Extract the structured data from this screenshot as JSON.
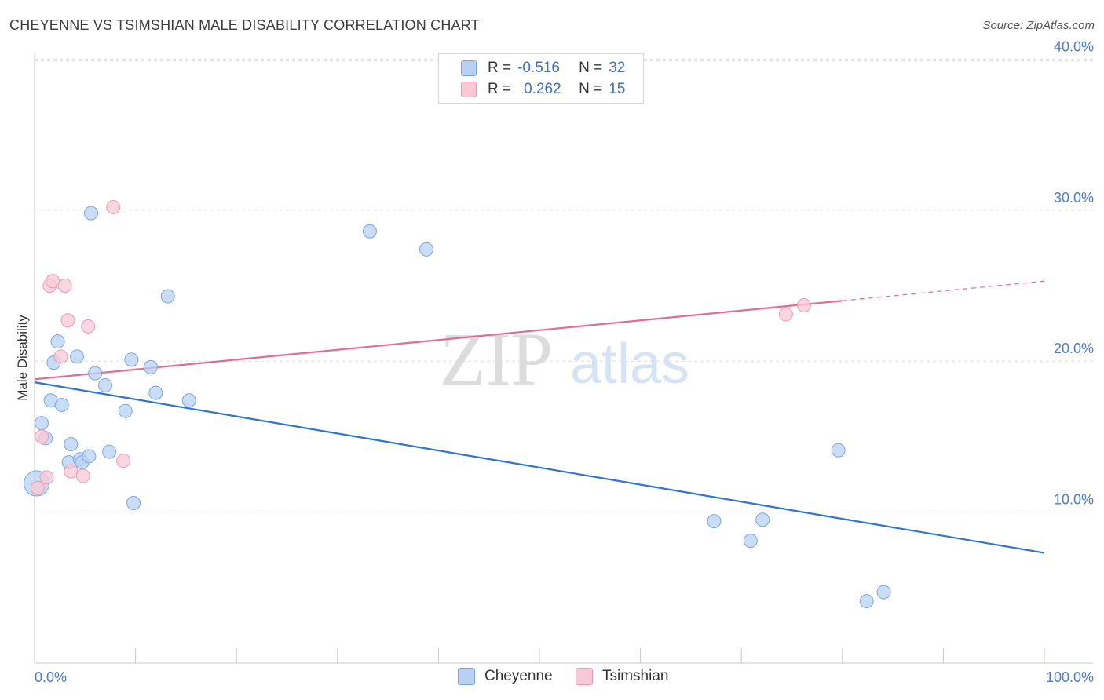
{
  "header": {
    "title": "CHEYENNE VS TSIMSHIAN MALE DISABILITY CORRELATION CHART",
    "source": "Source: ZipAtlas.com"
  },
  "colors": {
    "cheyenne_fill": "#b8d1f3",
    "cheyenne_stroke": "#7aa6e0",
    "cheyenne_line": "#2f74d0",
    "tsimshian_fill": "#f8c8d6",
    "tsimshian_stroke": "#eb9ab2",
    "tsimshian_line": "#e36c93",
    "axis_text": "#4a7cc7",
    "grid": "#dddddd"
  },
  "legend": {
    "rows": [
      {
        "r_label": "R =",
        "r_value": "-0.516",
        "n_label": "N =",
        "n_value": "32"
      },
      {
        "r_label": "R =",
        "r_value": "0.262",
        "n_label": "N =",
        "n_value": "15"
      }
    ]
  },
  "watermark": {
    "zip": "ZIP",
    "atlas": "atlas"
  },
  "chart_data": {
    "type": "scatter",
    "title": "CHEYENNE VS TSIMSHIAN MALE DISABILITY CORRELATION CHART",
    "xlabel": "",
    "ylabel": "Male Disability",
    "xlim": [
      0,
      100
    ],
    "ylim": [
      0,
      40.8
    ],
    "x_tick_labels": [
      "0.0%",
      "100.0%"
    ],
    "y_ticks": [
      10,
      20,
      30,
      40
    ],
    "y_tick_labels": [
      "10.0%",
      "20.0%",
      "30.0%",
      "40.0%"
    ],
    "grid": true,
    "legend_position": "bottom-center",
    "series": [
      {
        "name": "Cheyenne",
        "r": -0.516,
        "n": 32,
        "points": [
          [
            0.2,
            11.9
          ],
          [
            0.7,
            15.9
          ],
          [
            1.1,
            14.9
          ],
          [
            1.6,
            17.4
          ],
          [
            1.9,
            19.9
          ],
          [
            2.3,
            21.3
          ],
          [
            2.7,
            17.1
          ],
          [
            3.4,
            13.3
          ],
          [
            3.6,
            14.5
          ],
          [
            4.2,
            20.3
          ],
          [
            4.5,
            13.5
          ],
          [
            4.7,
            13.3
          ],
          [
            5.4,
            13.7
          ],
          [
            5.6,
            29.8
          ],
          [
            6.0,
            19.2
          ],
          [
            7.0,
            18.4
          ],
          [
            7.4,
            14.0
          ],
          [
            9.0,
            16.7
          ],
          [
            9.6,
            20.1
          ],
          [
            9.8,
            10.6
          ],
          [
            11.5,
            19.6
          ],
          [
            12.0,
            17.9
          ],
          [
            13.2,
            24.3
          ],
          [
            15.3,
            17.4
          ],
          [
            33.2,
            28.6
          ],
          [
            38.8,
            27.4
          ],
          [
            67.3,
            9.4
          ],
          [
            70.9,
            8.1
          ],
          [
            72.1,
            9.5
          ],
          [
            79.6,
            14.1
          ],
          [
            82.4,
            4.1
          ],
          [
            84.1,
            4.7
          ]
        ],
        "trend": {
          "x0": 0,
          "y0": 18.6,
          "x1": 100,
          "y1": 7.3
        }
      },
      {
        "name": "Tsimshian",
        "r": 0.262,
        "n": 15,
        "points": [
          [
            0.3,
            11.6
          ],
          [
            0.7,
            15.0
          ],
          [
            1.2,
            12.3
          ],
          [
            1.5,
            25.0
          ],
          [
            1.8,
            25.3
          ],
          [
            2.6,
            20.3
          ],
          [
            3.0,
            25.0
          ],
          [
            3.3,
            22.7
          ],
          [
            3.6,
            12.7
          ],
          [
            4.8,
            12.4
          ],
          [
            5.3,
            22.3
          ],
          [
            7.8,
            30.2
          ],
          [
            8.8,
            13.4
          ],
          [
            74.4,
            23.1
          ],
          [
            76.2,
            23.7
          ]
        ],
        "trend": {
          "x0": 0,
          "y0": 18.8,
          "x1": 80,
          "y1": 24.0
        },
        "trend_dashed_extension": {
          "x0": 80,
          "y0": 24.0,
          "x1": 100,
          "y1": 25.3
        }
      }
    ]
  },
  "bottom_legend": {
    "items": [
      {
        "label": "Cheyenne"
      },
      {
        "label": "Tsimshian"
      }
    ]
  }
}
